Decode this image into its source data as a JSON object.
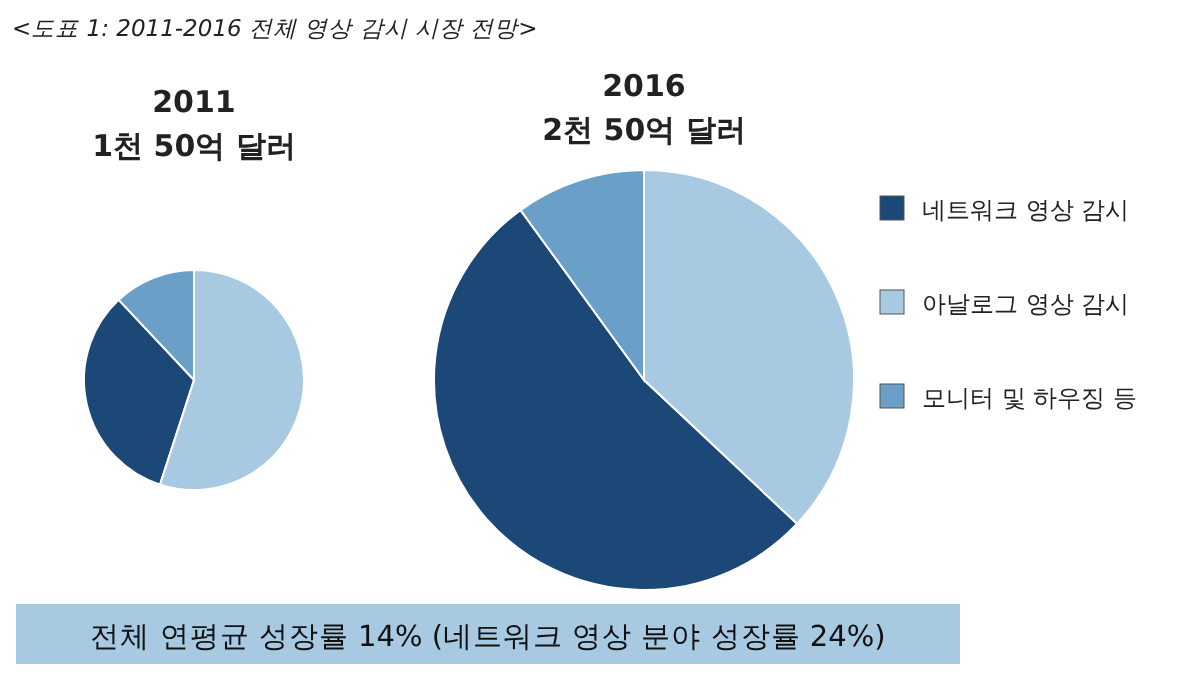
{
  "chart_data": [
    {
      "type": "pie",
      "title": "2011",
      "subtitle": "1천 50억 달러",
      "categories": [
        null,
        null,
        null
      ],
      "values": [
        33,
        55,
        12
      ],
      "colors": [
        "#1b4876",
        "#a8c9e2",
        "#6a9fc8"
      ],
      "annotations": [
        "<도표 1: 2011-2016 전체 영상 감시 시장 전망>"
      ]
    },
    {
      "type": "pie",
      "title": "2016",
      "subtitle": "2천 50억 달러",
      "categories": [
        "네트워크 영상 감시",
        "아날로그 영상 감시",
        "모니터 및 하우징 등"
      ],
      "values": [
        53,
        37,
        10
      ],
      "colors": [
        "#1b4876",
        "#a8c9e2",
        "#6a9fc8"
      ],
      "legend": "right",
      "annotations": [
        "전체 연평균 성장률 14% (네트워크 영상 분야 성장률 24%)"
      ]
    }
  ]
}
